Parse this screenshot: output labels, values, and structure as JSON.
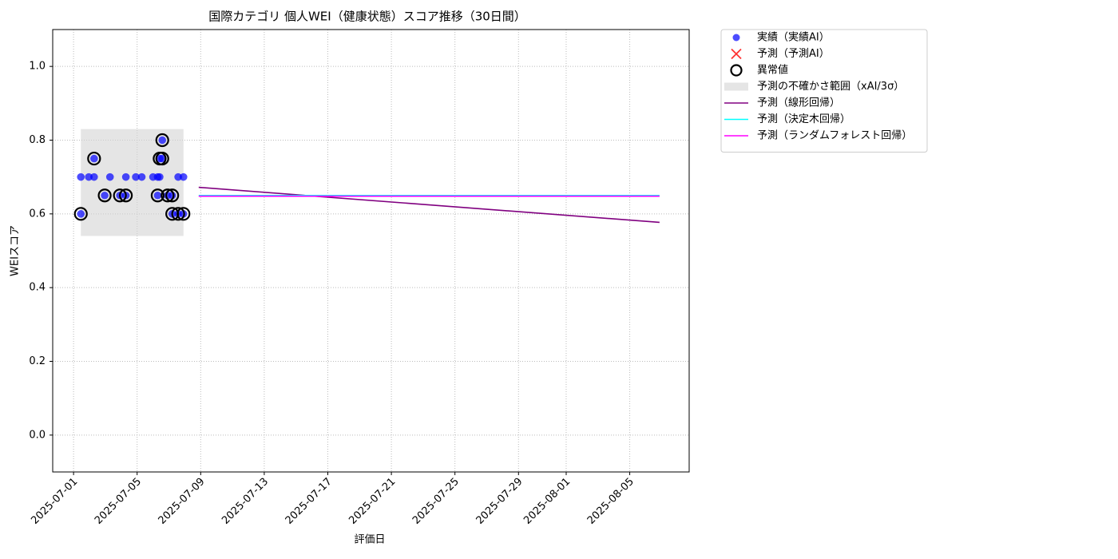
{
  "chart_data": {
    "type": "scatter",
    "title": "国際カテゴリ 個人WEI（健康状態）スコア推移（30日間）",
    "xlabel": "評価日",
    "ylabel": "WEIスコア",
    "xlim": [
      "2025-06-29T16:30",
      "2025-08-08T17:45"
    ],
    "xticks": [
      "2025-07-01",
      "2025-07-05",
      "2025-07-09",
      "2025-07-13",
      "2025-07-17",
      "2025-07-21",
      "2025-07-25",
      "2025-07-29",
      "2025-08-01",
      "2025-08-05"
    ],
    "ylim": [
      -0.1,
      1.1
    ],
    "yticks": [
      {
        "value": 0,
        "label": "0.0"
      },
      0.2,
      0.4,
      0.6,
      0.8,
      {
        "value": 1,
        "label": "1.0"
      }
    ],
    "grid": true,
    "legend": "outside upper right",
    "series": [
      {
        "name": "実績（実績AI）",
        "type": "scatter",
        "marker": "dot",
        "color": "#0000ff",
        "x": [
          "2025-07-01T11:00",
          "2025-07-01T11:00",
          "2025-07-01T23:00",
          "2025-07-02T07:00",
          "2025-07-02T07:00",
          "2025-07-02T23:00",
          "2025-07-03T07:00",
          "2025-07-03T22:00",
          "2025-07-04T07:00",
          "2025-07-04T07:00",
          "2025-07-04T22:00",
          "2025-07-05T07:00",
          "2025-07-06T00:00",
          "2025-07-06T07:00",
          "2025-07-06T07:00",
          "2025-07-06T10:00",
          "2025-07-06T10:00",
          "2025-07-06T14:00",
          "2025-07-06T14:00",
          "2025-07-06T22:00",
          "2025-07-07T05:00",
          "2025-07-07T05:00",
          "2025-07-07T14:00",
          "2025-07-07T14:00",
          "2025-07-07T22:00",
          "2025-07-07T22:00"
        ],
        "values": [
          0.6,
          0.7,
          0.7,
          0.75,
          0.7,
          0.65,
          0.7,
          0.65,
          0.65,
          0.7,
          0.7,
          0.7,
          0.7,
          0.65,
          0.7,
          0.75,
          0.7,
          0.8,
          0.75,
          0.65,
          0.65,
          0.6,
          0.7,
          0.6,
          0.7,
          0.6
        ]
      },
      {
        "name": "予測（予測AI）",
        "type": "scatter",
        "marker": "x",
        "color": "#ff0000",
        "x": [],
        "values": []
      },
      {
        "name": "異常値",
        "type": "scatter",
        "marker": "ring",
        "color": "#000000",
        "x": [
          "2025-07-01T11:00",
          "2025-07-02T07:00",
          "2025-07-02T23:00",
          "2025-07-03T22:00",
          "2025-07-04T07:00",
          "2025-07-06T07:00",
          "2025-07-06T10:00",
          "2025-07-06T14:00",
          "2025-07-06T14:00",
          "2025-07-06T22:00",
          "2025-07-07T05:00",
          "2025-07-07T05:00",
          "2025-07-07T14:00",
          "2025-07-07T22:00"
        ],
        "values": [
          0.6,
          0.75,
          0.65,
          0.65,
          0.65,
          0.65,
          0.75,
          0.8,
          0.75,
          0.65,
          0.65,
          0.6,
          0.6,
          0.6
        ]
      },
      {
        "name": "予測の不確かさ範囲（xAI/3σ）",
        "type": "band",
        "color": "#d3d3d3",
        "x": [
          "2025-07-01T11:00",
          "2025-07-07T22:00"
        ],
        "lower": [
          0.54,
          0.54
        ],
        "upper": [
          0.83,
          0.83
        ]
      },
      {
        "name": "予測（線形回帰）",
        "type": "line",
        "color": "#800080",
        "x": [
          "2025-07-08T21:00",
          "2025-08-06T21:00"
        ],
        "values": [
          0.672,
          0.577
        ]
      },
      {
        "name": "予測（決定木回帰）",
        "type": "line",
        "color": "#00ffff",
        "x": [
          "2025-07-08T21:00",
          "2025-08-06T21:00"
        ],
        "values": [
          0.65,
          0.65
        ]
      },
      {
        "name": "予測（ランダムフォレスト回帰）",
        "type": "line",
        "color": "#ff00ff",
        "x": [
          "2025-07-08T21:00",
          "2025-08-06T21:00"
        ],
        "values": [
          0.648,
          0.648
        ]
      }
    ]
  }
}
